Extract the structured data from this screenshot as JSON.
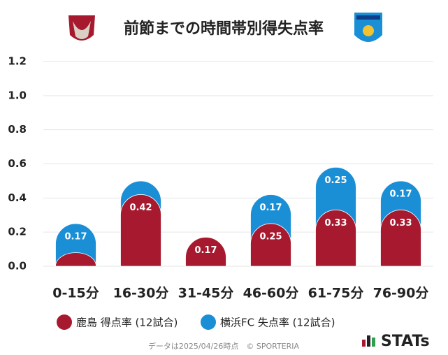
{
  "chart_data": {
    "type": "stacked-bar",
    "title": "前節までの時間帯別得失点率",
    "categories": [
      "0-15分",
      "16-30分",
      "31-45分",
      "46-60分",
      "61-75分",
      "76-90分"
    ],
    "series": [
      {
        "name": "鹿島 得点率 (12試合)",
        "color": "#a6192e",
        "values": [
          0.08,
          0.42,
          0.17,
          0.25,
          0.33,
          0.33
        ],
        "value_labels": [
          null,
          "0.42",
          "0.17",
          "0.25",
          "0.33",
          "0.33"
        ]
      },
      {
        "name": "横浜FC 失点率 (12試合)",
        "color": "#1a8fd6",
        "values": [
          0.17,
          0.08,
          0,
          0.17,
          0.25,
          0.17
        ],
        "value_labels": [
          "0.17",
          null,
          null,
          "0.17",
          "0.25",
          "0.17"
        ]
      }
    ],
    "ylim": [
      0,
      1.2
    ],
    "yticks": [
      {
        "value": 0,
        "label": "0.0"
      },
      0.2,
      0.4,
      0.6,
      0.8,
      {
        "value": 1,
        "label": "1.0"
      },
      1.2
    ],
    "grid": true
  },
  "footer": {
    "note": "データは2025/04/26時点　© SPORTERIA",
    "brand": "STATs"
  }
}
